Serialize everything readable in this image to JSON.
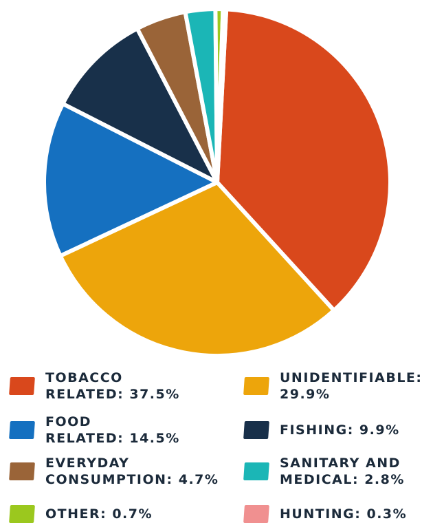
{
  "chart_data": {
    "type": "pie",
    "title": "",
    "slices": [
      {
        "label": "TOBACCO\nRELATED: 37.5%",
        "value": 37.5,
        "color": "#d9481c"
      },
      {
        "label": "UNIDENTIFIABLE:\n29.9%",
        "value": 29.9,
        "color": "#eda50b"
      },
      {
        "label": "FOOD\nRELATED: 14.5%",
        "value": 14.5,
        "color": "#1570c0"
      },
      {
        "label": "FISHING: 9.9%",
        "value": 9.9,
        "color": "#18304a"
      },
      {
        "label": "EVERYDAY\nCONSUMPTION: 4.7%",
        "value": 4.7,
        "color": "#9a6438"
      },
      {
        "label": "SANITARY AND\nMEDICAL: 2.8%",
        "value": 2.8,
        "color": "#1bb6b6"
      },
      {
        "label": "OTHER: 0.7%",
        "value": 0.7,
        "color": "#9bc81e"
      },
      {
        "label": "HUNTING: 0.3%",
        "value": 0.3,
        "color": "#f09090"
      }
    ],
    "legend_placement": "bottom",
    "legend_order": [
      0,
      1,
      2,
      3,
      4,
      5,
      6,
      7
    ]
  }
}
